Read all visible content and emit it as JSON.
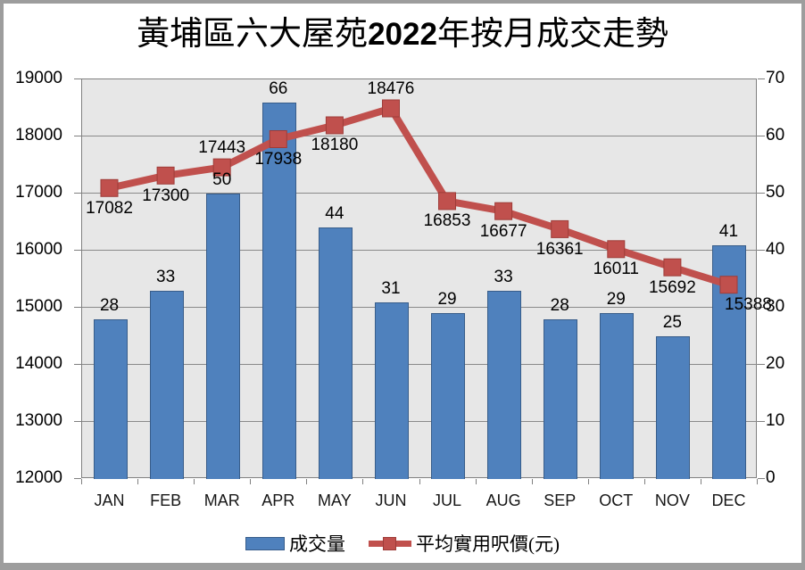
{
  "title": {
    "prefix": "黃埔區六大屋苑",
    "year": "2022",
    "suffix": "年按月成交走勢"
  },
  "legend": {
    "volume_label": "成交量",
    "price_label": "平均實用呎價(元)"
  },
  "chart_data": {
    "type": "combo-bar-line",
    "title": "黃埔區六大屋苑2022年按月成交走勢",
    "categories": [
      "JAN",
      "FEB",
      "MAR",
      "APR",
      "MAY",
      "JUN",
      "JUL",
      "AUG",
      "SEP",
      "OCT",
      "NOV",
      "DEC"
    ],
    "series": [
      {
        "name": "成交量",
        "type": "bar",
        "axis": "right",
        "values": [
          28,
          33,
          50,
          66,
          44,
          31,
          29,
          33,
          28,
          29,
          25,
          41
        ],
        "color": "#4f81bd",
        "border_color": "#385d8a"
      },
      {
        "name": "平均實用呎價(元)",
        "type": "line",
        "axis": "left",
        "values": [
          17082,
          17300,
          17443,
          17938,
          18180,
          18476,
          16853,
          16677,
          16361,
          16011,
          15692,
          15388
        ],
        "color": "#c0504d",
        "marker_border_color": "#9e3c39",
        "label_positions": [
          "below",
          "below",
          "above",
          "below",
          "below",
          "above",
          "below",
          "below",
          "below",
          "below",
          "below",
          "below-right"
        ]
      }
    ],
    "axes": {
      "left": {
        "min": 12000,
        "max": 19000,
        "step": 1000
      },
      "right": {
        "min": 0,
        "max": 70,
        "step": 10
      }
    },
    "plot_bg": "#e7e7e7",
    "plot_border_color": "#808080",
    "gridline_color": "#8a8a8a",
    "grid": "horizontal",
    "legend_position": "bottom"
  }
}
